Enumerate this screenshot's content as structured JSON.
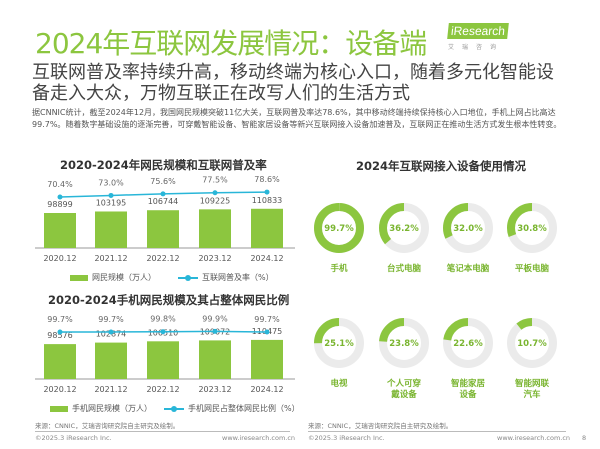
{
  "header": {
    "title": "2024年互联网发展情况：设备端",
    "logo_text": "iResearch",
    "logo_sub": "艾瑞咨询",
    "subtitle": "互联网普及率持续升高，移动终端为核心入口，随着多元化智能设备走入大众，万物互联正在改写人们的生活方式",
    "body": "据CNNIC统计，截至2024年12月，我国网民规模突破11亿大关，互联网普及率达78.6%，其中移动终端持续保持核心入口地位，手机上网占比高达99.7%。随着数字基础设施的逐渐完善，可穿戴智能设备、智能家居设备等新兴互联网接入设备加速普及，互联网正在推动生活方式发生根本性转变。"
  },
  "colors": {
    "bar": "#8cc63f",
    "line": "#29b6d8",
    "ring_track": "#ebebeb",
    "title": "#8cc63f"
  },
  "chart_data": [
    {
      "type": "bar+line",
      "title": "2020-2024年网民规模和互联网普及率",
      "categories": [
        "2020.12",
        "2021.12",
        "2022.12",
        "2023.12",
        "2024.12"
      ],
      "series": [
        {
          "name": "网民规模（万人）",
          "type": "bar",
          "values": [
            98899,
            103195,
            106744,
            109225,
            110833
          ],
          "labels": [
            "98899",
            "103195",
            "106744",
            "109225",
            "110833"
          ]
        },
        {
          "name": "互联网普及率（%）",
          "type": "line",
          "values": [
            70.4,
            73.0,
            75.6,
            77.5,
            78.6
          ],
          "labels": [
            "70.4%",
            "73.0%",
            "75.6%",
            "77.5%",
            "78.6%"
          ]
        }
      ],
      "grid": false,
      "legend": "bottom"
    },
    {
      "type": "bar+line",
      "title": "2020-2024手机网民规模及其占整体网民比例",
      "categories": [
        "2020.12",
        "2021.12",
        "2022.12",
        "2023.12",
        "2024.12"
      ],
      "series": [
        {
          "name": "手机网民规模（万人）",
          "type": "bar",
          "values": [
            98576,
            102874,
            106510,
            109072,
            110475
          ],
          "labels": [
            "98576",
            "102874",
            "106510",
            "109072",
            "110475"
          ]
        },
        {
          "name": "手机网民占整体网民比例（%）",
          "type": "line",
          "values": [
            99.7,
            99.7,
            99.8,
            99.9,
            99.7
          ],
          "labels": [
            "99.7%",
            "99.7%",
            "99.8%",
            "99.9%",
            "99.7%"
          ]
        }
      ],
      "grid": false,
      "legend": "bottom"
    },
    {
      "type": "donut",
      "title": "2024年互联网接入设备使用情况",
      "items": [
        {
          "label": "手机",
          "value": 99.7,
          "text": "99.7%"
        },
        {
          "label": "台式电脑",
          "value": 36.2,
          "text": "36.2%"
        },
        {
          "label": "笔记本电脑",
          "value": 32.0,
          "text": "32.0%"
        },
        {
          "label": "平板电脑",
          "value": 30.8,
          "text": "30.8%"
        },
        {
          "label": "电视",
          "value": 25.1,
          "text": "25.1%"
        },
        {
          "label": "个人可穿戴设备",
          "value": 23.8,
          "text": "23.8%"
        },
        {
          "label": "智能家居设备",
          "value": 22.6,
          "text": "22.6%"
        },
        {
          "label": "智能网联汽车",
          "value": 10.7,
          "text": "10.7%"
        }
      ]
    }
  ],
  "source": "来源：CNNIC，艾瑞咨询研究院自主研究及绘制。",
  "footer": {
    "copyright": "©2025.3 iResearch Inc.",
    "url": "www.iresearch.com.cn",
    "page": "8"
  }
}
